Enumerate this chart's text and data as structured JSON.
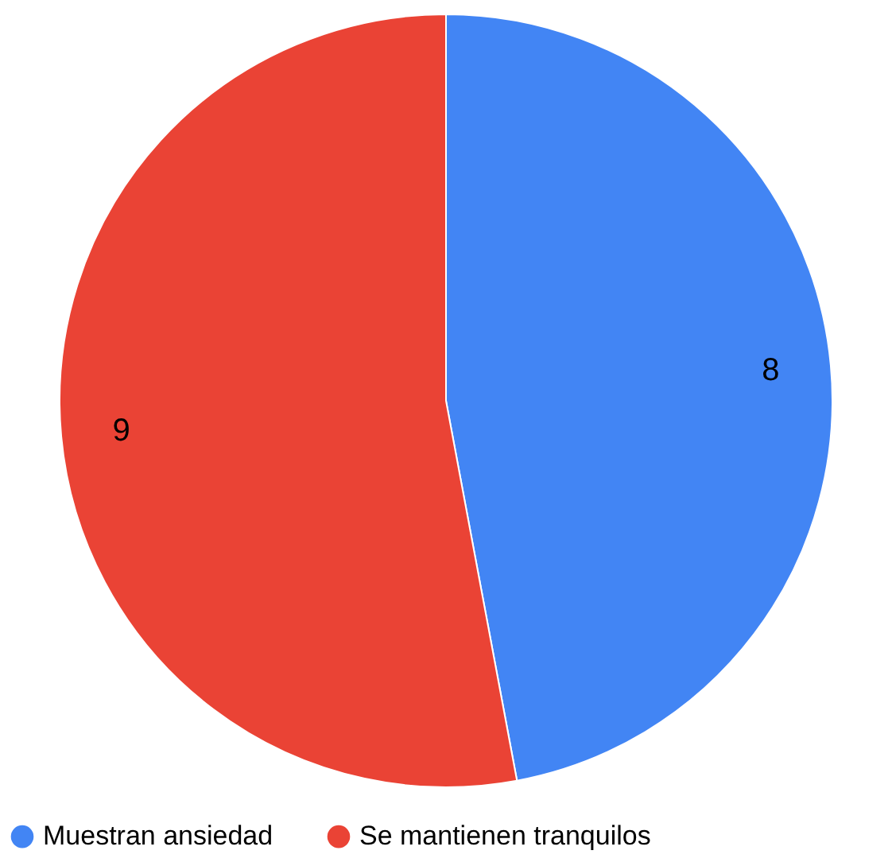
{
  "chart_data": {
    "type": "pie",
    "categories": [
      "Muestran ansiedad",
      "Se mantienen tranquilos"
    ],
    "values": [
      8,
      9
    ],
    "colors": [
      "#4285f4",
      "#ea4335"
    ],
    "data_labels": true,
    "legend": "bottom"
  }
}
